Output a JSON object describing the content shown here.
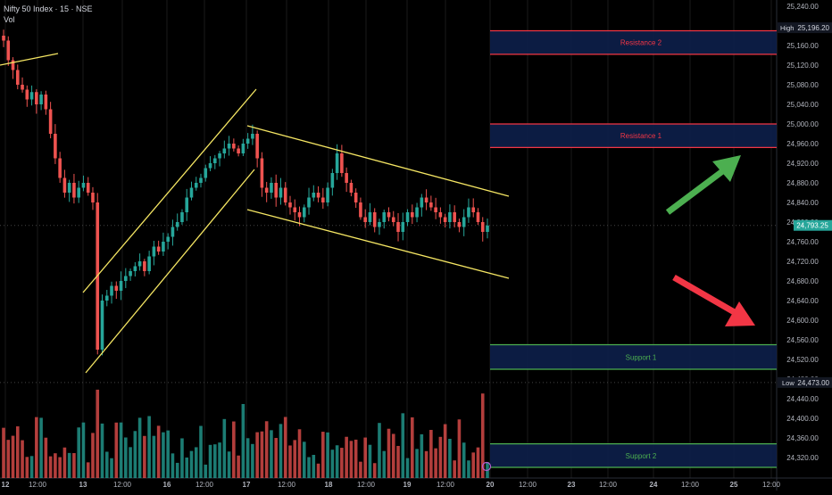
{
  "header": {
    "symbol_line": "Nifty 50 Index · 15 · NSE",
    "vol_label": "Vol"
  },
  "colors": {
    "background": "#000000",
    "up": "#26a69a",
    "down": "#ef5350",
    "trendline": "#f5e663",
    "resistance_line": "#f23645",
    "support_line": "#4caf50",
    "zone_fill": "#0d1f4a",
    "arrow_up": "#4caf50",
    "arrow_down": "#f23645",
    "axis_text": "#b2b5be",
    "grid": "#1a1a1a"
  },
  "chart_data": {
    "type": "candlestick",
    "price_axis": {
      "ylim": [
        24280,
        25280
      ],
      "ticks": [
        "25,240.00",
        "25,200.00",
        "25,160.00",
        "25,120.00",
        "25,080.00",
        "25,040.00",
        "25,000.00",
        "24,960.00",
        "24,920.00",
        "24,880.00",
        "24,840.00",
        "24,800.00",
        "24,760.00",
        "24,720.00",
        "24,680.00",
        "24,640.00",
        "24,600.00",
        "24,560.00",
        "24,520.00",
        "24,480.00",
        "24,440.00",
        "24,400.00",
        "24,360.00",
        "24,320.00"
      ],
      "tick_values": [
        25240,
        25200,
        25160,
        25120,
        25080,
        25040,
        25000,
        24960,
        24920,
        24880,
        24840,
        24800,
        24760,
        24720,
        24680,
        24640,
        24600,
        24560,
        24520,
        24480,
        24440,
        24400,
        24360,
        24320
      ],
      "high_label": "High",
      "high_value": "25,196.20",
      "high_price": 25196.2,
      "last_value": "24,793.25",
      "last_price": 24793.25,
      "low_label": "Low",
      "low_value": "24,473.00",
      "low_price": 24473
    },
    "time_axis": {
      "labels": [
        "12",
        "12:00",
        "13",
        "12:00",
        "16",
        "12:00",
        "17",
        "12:00",
        "18",
        "12:00",
        "19",
        "12:00",
        "20",
        "12:00",
        "23",
        "12:00",
        "24",
        "12:00",
        "25",
        "12:00"
      ],
      "bold_labels": [
        "12",
        "13",
        "16",
        "17",
        "18",
        "19",
        "20",
        "23",
        "24",
        "25"
      ]
    },
    "zones": [
      {
        "label": "Resistance 2",
        "top": 25190,
        "bottom": 25142,
        "kind": "resistance"
      },
      {
        "label": "Resistance 1",
        "top": 25000,
        "bottom": 24952,
        "kind": "resistance"
      },
      {
        "label": "Support 1",
        "top": 24550,
        "bottom": 24500,
        "kind": "support"
      },
      {
        "label": "Support 2",
        "top": 24348,
        "bottom": 24300,
        "kind": "support"
      }
    ],
    "close_series": [
      25170,
      25130,
      25110,
      25080,
      25070,
      25050,
      25065,
      25040,
      25060,
      25030,
      24980,
      24930,
      24890,
      24860,
      24880,
      24850,
      24870,
      24880,
      24860,
      24840,
      24540,
      24640,
      24650,
      24670,
      24660,
      24680,
      24690,
      24700,
      24710,
      24720,
      24700,
      24730,
      24750,
      24740,
      24760,
      24770,
      24790,
      24800,
      24820,
      24850,
      24870,
      24880,
      24890,
      24910,
      24920,
      24930,
      24940,
      24950,
      24960,
      24950,
      24940,
      24960,
      24970,
      24980,
      24930,
      24870,
      24860,
      24880,
      24850,
      24870,
      24840,
      24830,
      24820,
      24810,
      24830,
      24850,
      24860,
      24850,
      24840,
      24870,
      24900,
      24940,
      24900,
      24880,
      24860,
      24840,
      24810,
      24800,
      24820,
      24790,
      24800,
      24820,
      24810,
      24800,
      24780,
      24800,
      24820,
      24810,
      24830,
      24850,
      24840,
      24830,
      24820,
      24810,
      24800,
      24820,
      24800,
      24790,
      24810,
      24830,
      24820,
      24800,
      24780,
      24793
    ]
  },
  "zone_labels": {
    "r2": "Resistance 2",
    "r1": "Resistance 1",
    "s1": "Support 1",
    "s2": "Support 2"
  },
  "tv_mark": "⊘"
}
